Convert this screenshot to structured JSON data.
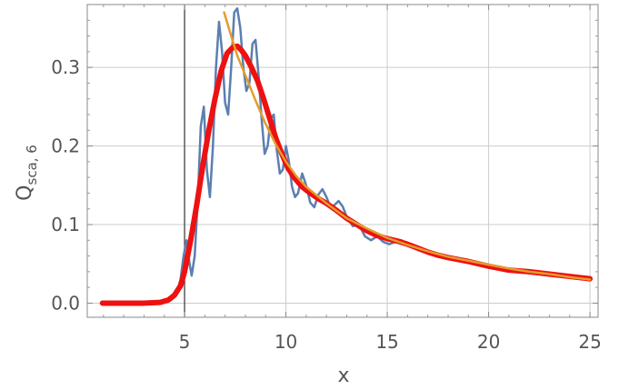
{
  "chart_data": {
    "type": "line",
    "xlabel": "x",
    "ylabel": {
      "main": "Q",
      "sub": "sca, 6"
    },
    "xlim": [
      0.2,
      25.4
    ],
    "ylim": [
      -0.018,
      0.38
    ],
    "xticks": [
      5,
      10,
      15,
      20,
      25
    ],
    "xtick_labels": [
      "5",
      "10",
      "15",
      "20",
      "25"
    ],
    "yticks": [
      0.0,
      0.1,
      0.2,
      0.3
    ],
    "ytick_labels": [
      "0.0",
      "0.1",
      "0.2",
      "0.3"
    ],
    "grid": true,
    "frame": true,
    "highlight_line": {
      "x": 5,
      "color": "#333333"
    },
    "series": [
      {
        "color": "#5b7fb0",
        "width": 2.5,
        "x": [
          0.95,
          2,
          3,
          3.8,
          4.3,
          4.6,
          4.8,
          4.95,
          5.1,
          5.25,
          5.35,
          5.5,
          5.65,
          5.8,
          5.95,
          6.1,
          6.25,
          6.4,
          6.55,
          6.7,
          6.85,
          7.0,
          7.15,
          7.3,
          7.45,
          7.6,
          7.75,
          7.9,
          8.05,
          8.2,
          8.35,
          8.5,
          8.65,
          8.8,
          8.95,
          9.1,
          9.25,
          9.4,
          9.55,
          9.7,
          9.85,
          10.0,
          10.15,
          10.3,
          10.45,
          10.6,
          10.8,
          11.0,
          11.2,
          11.4,
          11.6,
          11.8,
          12.0,
          12.2,
          12.4,
          12.6,
          12.8,
          13.0,
          13.3,
          13.6,
          13.9,
          14.2,
          14.5,
          14.8,
          15.1,
          15.4,
          15.7,
          16.0,
          16.5,
          17.0,
          17.5,
          18,
          19,
          20,
          21,
          22,
          23,
          24,
          25
        ],
        "y": [
          0.0,
          0.0,
          0.0,
          0.001,
          0.005,
          0.012,
          0.03,
          0.06,
          0.08,
          0.05,
          0.035,
          0.06,
          0.13,
          0.225,
          0.25,
          0.17,
          0.135,
          0.2,
          0.3,
          0.358,
          0.32,
          0.255,
          0.24,
          0.3,
          0.37,
          0.375,
          0.35,
          0.3,
          0.27,
          0.28,
          0.33,
          0.335,
          0.29,
          0.235,
          0.19,
          0.2,
          0.235,
          0.24,
          0.195,
          0.165,
          0.17,
          0.2,
          0.18,
          0.148,
          0.135,
          0.14,
          0.165,
          0.15,
          0.128,
          0.122,
          0.138,
          0.145,
          0.135,
          0.122,
          0.125,
          0.13,
          0.123,
          0.11,
          0.098,
          0.1,
          0.085,
          0.08,
          0.085,
          0.078,
          0.075,
          0.078,
          0.08,
          0.074,
          0.069,
          0.064,
          0.06,
          0.056,
          0.052,
          0.047,
          0.043,
          0.04,
          0.037,
          0.034,
          0.03
        ]
      },
      {
        "color": "#ee1111",
        "width": 6,
        "x": [
          0.95,
          2,
          3,
          3.8,
          4.2,
          4.5,
          4.8,
          5.0,
          5.3,
          5.6,
          5.9,
          6.2,
          6.5,
          6.8,
          7.1,
          7.4,
          7.6,
          7.8,
          8.0,
          8.3,
          8.6,
          8.9,
          9.2,
          9.5,
          9.8,
          10.1,
          10.4,
          10.8,
          11.2,
          11.6,
          12.0,
          12.5,
          13.0,
          13.5,
          14.0,
          14.5,
          15.0,
          15.5,
          16.0,
          16.5,
          17,
          17.5,
          18,
          19,
          20,
          21,
          22,
          23,
          24,
          25
        ],
        "y": [
          0.0,
          0.0,
          0.0,
          0.001,
          0.004,
          0.01,
          0.022,
          0.04,
          0.08,
          0.125,
          0.175,
          0.22,
          0.26,
          0.295,
          0.318,
          0.326,
          0.327,
          0.322,
          0.315,
          0.3,
          0.283,
          0.26,
          0.235,
          0.21,
          0.19,
          0.172,
          0.16,
          0.148,
          0.14,
          0.133,
          0.127,
          0.118,
          0.108,
          0.1,
          0.092,
          0.086,
          0.082,
          0.079,
          0.075,
          0.07,
          0.065,
          0.061,
          0.058,
          0.053,
          0.047,
          0.042,
          0.04,
          0.037,
          0.034,
          0.031
        ]
      },
      {
        "color": "#e29d2c",
        "width": 2.5,
        "x": [
          6.95,
          7.3,
          7.6,
          8.0,
          8.5,
          9.0,
          9.5,
          10.0,
          10.5,
          11.0,
          12.0,
          13.0,
          14.0,
          15.0,
          16.0,
          17.0,
          18.0,
          19.0,
          20.0,
          21.0,
          22.0,
          23.0,
          24.0,
          25.0
        ],
        "y": [
          0.37,
          0.34,
          0.315,
          0.29,
          0.258,
          0.228,
          0.202,
          0.18,
          0.162,
          0.148,
          0.127,
          0.108,
          0.095,
          0.083,
          0.074,
          0.066,
          0.059,
          0.054,
          0.049,
          0.044,
          0.04,
          0.037,
          0.033,
          0.03
        ]
      }
    ]
  }
}
